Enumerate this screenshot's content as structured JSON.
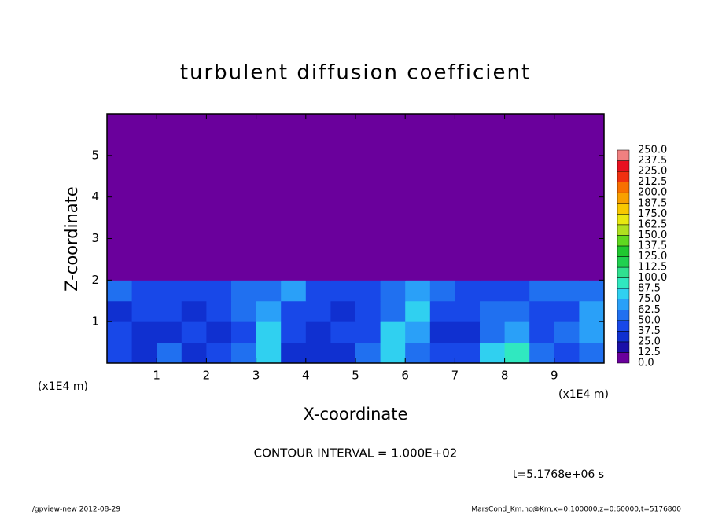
{
  "chart_data": {
    "type": "heatmap",
    "title": "turbulent diffusion coefficient",
    "x_label": "X-coordinate",
    "y_label": "Z-coordinate",
    "x_unit": "(x1E4 m)",
    "y_unit": "(x1E4 m)",
    "xlim": [
      0,
      10
    ],
    "ylim": [
      0,
      6
    ],
    "xticks": [
      1,
      2,
      3,
      4,
      5,
      6,
      7,
      8,
      9
    ],
    "yticks": [
      1,
      2,
      3,
      4,
      5
    ],
    "xbins": [
      0,
      0.5,
      1,
      1.5,
      2,
      2.5,
      3,
      3.5,
      4,
      4.5,
      5,
      5.5,
      6,
      6.5,
      7,
      7.5,
      8,
      8.5,
      9,
      9.5,
      10
    ],
    "ybins": [
      0,
      0.5,
      1,
      1.5,
      2,
      6
    ],
    "z": [
      [
        45,
        35,
        55,
        30,
        40,
        60,
        75,
        30,
        30,
        35,
        50,
        80,
        60,
        40,
        45,
        80,
        90,
        55,
        40,
        60
      ],
      [
        40,
        30,
        35,
        40,
        30,
        45,
        80,
        45,
        25,
        40,
        40,
        75,
        70,
        35,
        30,
        60,
        70,
        45,
        50,
        70
      ],
      [
        35,
        40,
        40,
        30,
        40,
        50,
        70,
        45,
        40,
        35,
        45,
        50,
        75,
        45,
        40,
        50,
        55,
        40,
        45,
        70
      ],
      [
        50,
        45,
        45,
        40,
        45,
        50,
        60,
        65,
        45,
        40,
        45,
        50,
        65,
        60,
        40,
        45,
        45,
        50,
        50,
        60
      ],
      [
        0,
        0,
        0,
        0,
        0,
        0,
        0,
        0,
        0,
        0,
        0,
        0,
        0,
        0,
        0,
        0,
        0,
        0,
        0,
        0
      ]
    ],
    "levels": [
      {
        "value": 0,
        "label": "0.0"
      },
      {
        "value": 12.5,
        "label": "12.5"
      },
      {
        "value": 25,
        "label": "25.0"
      },
      {
        "value": 37.5,
        "label": "37.5"
      },
      {
        "value": 50,
        "label": "50.0"
      },
      {
        "value": 62.5,
        "label": "62.5"
      },
      {
        "value": 75,
        "label": "75.0"
      },
      {
        "value": 87.5,
        "label": "87.5"
      },
      {
        "value": 100,
        "label": "100.0"
      },
      {
        "value": 112.5,
        "label": "112.5"
      },
      {
        "value": 125,
        "label": "125.0"
      },
      {
        "value": 137.5,
        "label": "137.5"
      },
      {
        "value": 150,
        "label": "150.0"
      },
      {
        "value": 162.5,
        "label": "162.5"
      },
      {
        "value": 175,
        "label": "175.0"
      },
      {
        "value": 187.5,
        "label": "187.5"
      },
      {
        "value": 200,
        "label": "200.0"
      },
      {
        "value": 212.5,
        "label": "212.5"
      },
      {
        "value": 225,
        "label": "225.0"
      },
      {
        "value": 237.5,
        "label": "237.5"
      },
      {
        "value": 250,
        "label": "250.0"
      }
    ],
    "colors": [
      "#6a009c",
      "#1a10a8",
      "#1030d0",
      "#1848e8",
      "#2070f0",
      "#2aa0f8",
      "#30d0f0",
      "#30e8c0",
      "#30e090",
      "#20d050",
      "#20c830",
      "#60d820",
      "#b0e020",
      "#e8e810",
      "#f8c800",
      "#f8a000",
      "#f87000",
      "#f03010",
      "#e81020",
      "#f08080"
    ],
    "contour_interval": "CONTOUR INTERVAL = 1.000E+02",
    "time": "t=5.1768e+06 s",
    "footer_left": "./gpview-new  2012-08-29",
    "footer_right": "MarsCond_Km.nc@Km,x=0:100000,z=0:60000,t=5176800"
  }
}
